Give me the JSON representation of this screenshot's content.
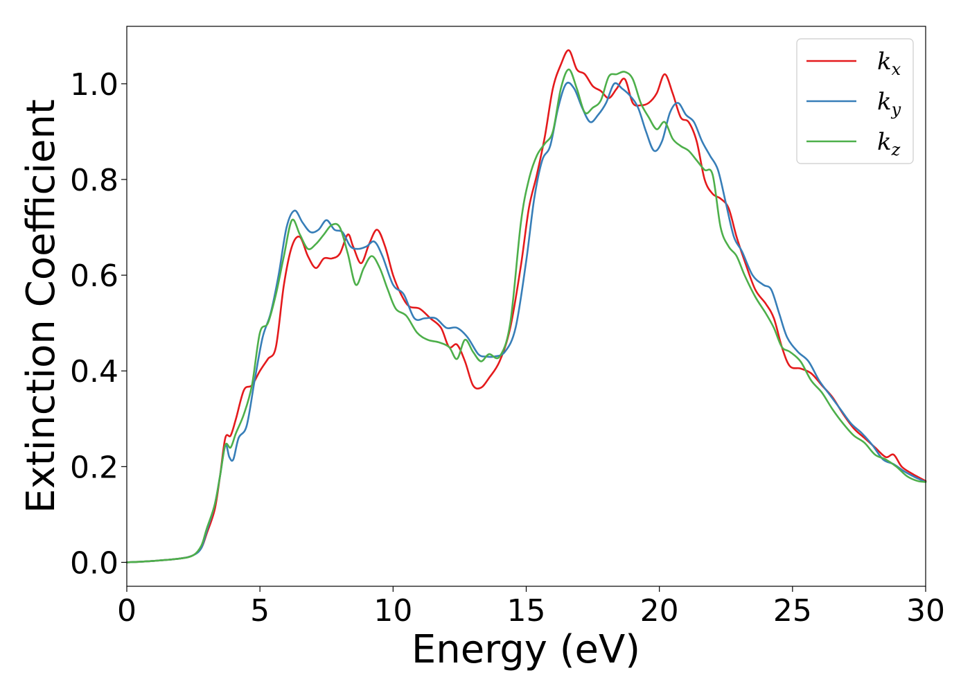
{
  "chart_data": {
    "type": "line",
    "xlabel": "Energy (eV)",
    "ylabel": "Extinction Coefficient",
    "xlim": [
      0,
      30
    ],
    "ylim": [
      -0.05,
      1.12
    ],
    "xticks": [
      0,
      5,
      10,
      15,
      20,
      25,
      30
    ],
    "xtick_labels": [
      "0",
      "5",
      "10",
      "15",
      "20",
      "25",
      "30"
    ],
    "yticks": [
      0.0,
      0.2,
      0.4,
      0.6,
      0.8,
      1.0
    ],
    "ytick_labels": [
      "0.0",
      "0.2",
      "0.4",
      "0.6",
      "0.8",
      "1.0"
    ],
    "grid": false,
    "legend_position": "top-right",
    "series": [
      {
        "name": "k",
        "subscript": "x",
        "color": "#e41a1c",
        "x": [
          0,
          1,
          2,
          2.5,
          2.8,
          3.0,
          3.3,
          3.5,
          3.7,
          3.9,
          4.1,
          4.4,
          4.7,
          5.0,
          5.3,
          5.6,
          5.9,
          6.2,
          6.5,
          6.8,
          7.1,
          7.4,
          7.7,
          8.0,
          8.3,
          8.5,
          8.8,
          9.1,
          9.4,
          9.7,
          10.0,
          10.3,
          10.6,
          11.0,
          11.4,
          11.8,
          12.1,
          12.4,
          12.7,
          13.0,
          13.3,
          13.6,
          14.0,
          14.4,
          14.8,
          15.1,
          15.4,
          15.7,
          16.0,
          16.3,
          16.6,
          16.9,
          17.2,
          17.5,
          17.8,
          18.1,
          18.4,
          18.7,
          19.0,
          19.3,
          19.6,
          19.9,
          20.2,
          20.5,
          20.8,
          21.1,
          21.4,
          21.7,
          22.0,
          22.3,
          22.6,
          22.9,
          23.2,
          23.6,
          24.0,
          24.3,
          24.6,
          24.9,
          25.3,
          25.7,
          26.1,
          26.5,
          26.9,
          27.3,
          27.7,
          28.1,
          28.5,
          28.8,
          29.1,
          29.5,
          30.0
        ],
        "y": [
          0.0,
          0.003,
          0.008,
          0.015,
          0.03,
          0.06,
          0.11,
          0.18,
          0.26,
          0.265,
          0.3,
          0.36,
          0.37,
          0.4,
          0.425,
          0.45,
          0.58,
          0.66,
          0.68,
          0.64,
          0.615,
          0.635,
          0.635,
          0.645,
          0.685,
          0.66,
          0.625,
          0.665,
          0.695,
          0.66,
          0.6,
          0.56,
          0.535,
          0.53,
          0.51,
          0.49,
          0.45,
          0.455,
          0.42,
          0.37,
          0.365,
          0.385,
          0.42,
          0.49,
          0.62,
          0.74,
          0.81,
          0.89,
          0.99,
          1.04,
          1.07,
          1.03,
          1.02,
          0.995,
          0.985,
          0.97,
          0.99,
          1.01,
          0.96,
          0.955,
          0.96,
          0.98,
          1.02,
          0.98,
          0.93,
          0.92,
          0.88,
          0.8,
          0.77,
          0.76,
          0.74,
          0.68,
          0.63,
          0.57,
          0.54,
          0.51,
          0.45,
          0.41,
          0.405,
          0.395,
          0.37,
          0.345,
          0.31,
          0.28,
          0.26,
          0.24,
          0.22,
          0.225,
          0.2,
          0.185,
          0.17
        ]
      },
      {
        "name": "k",
        "subscript": "y",
        "color": "#377eb8",
        "x": [
          0,
          1,
          2,
          2.5,
          2.8,
          3.0,
          3.3,
          3.5,
          3.7,
          3.85,
          4.0,
          4.2,
          4.5,
          4.8,
          5.1,
          5.4,
          5.7,
          6.0,
          6.3,
          6.6,
          6.9,
          7.2,
          7.5,
          7.8,
          8.1,
          8.4,
          8.7,
          9.0,
          9.3,
          9.6,
          10.0,
          10.4,
          10.8,
          11.2,
          11.6,
          12.0,
          12.4,
          12.8,
          13.2,
          13.5,
          13.8,
          14.2,
          14.6,
          15.0,
          15.3,
          15.6,
          15.9,
          16.2,
          16.5,
          16.8,
          17.1,
          17.4,
          17.7,
          18.0,
          18.3,
          18.6,
          18.9,
          19.2,
          19.5,
          19.8,
          20.1,
          20.4,
          20.7,
          21.0,
          21.3,
          21.6,
          21.9,
          22.2,
          22.5,
          22.8,
          23.1,
          23.5,
          23.9,
          24.2,
          24.5,
          24.8,
          25.2,
          25.6,
          26.0,
          26.4,
          26.8,
          27.2,
          27.6,
          28.0,
          28.4,
          28.8,
          29.2,
          29.6,
          30.0
        ],
        "y": [
          0.0,
          0.003,
          0.008,
          0.015,
          0.03,
          0.065,
          0.12,
          0.18,
          0.245,
          0.22,
          0.215,
          0.26,
          0.285,
          0.38,
          0.47,
          0.52,
          0.6,
          0.7,
          0.735,
          0.71,
          0.69,
          0.695,
          0.715,
          0.695,
          0.69,
          0.66,
          0.655,
          0.66,
          0.67,
          0.64,
          0.58,
          0.56,
          0.51,
          0.51,
          0.51,
          0.49,
          0.49,
          0.47,
          0.435,
          0.43,
          0.43,
          0.44,
          0.49,
          0.63,
          0.76,
          0.84,
          0.87,
          0.95,
          1.0,
          0.99,
          0.95,
          0.92,
          0.935,
          0.96,
          1.0,
          0.99,
          0.975,
          0.95,
          0.9,
          0.86,
          0.88,
          0.94,
          0.96,
          0.935,
          0.92,
          0.88,
          0.85,
          0.82,
          0.75,
          0.68,
          0.65,
          0.6,
          0.58,
          0.57,
          0.52,
          0.47,
          0.44,
          0.42,
          0.38,
          0.35,
          0.32,
          0.29,
          0.27,
          0.245,
          0.215,
          0.205,
          0.19,
          0.178,
          0.168
        ]
      },
      {
        "name": "k",
        "subscript": "z",
        "color": "#4daf4a",
        "x": [
          0,
          1,
          2,
          2.5,
          2.8,
          3.0,
          3.3,
          3.5,
          3.7,
          3.9,
          4.1,
          4.4,
          4.7,
          5.0,
          5.3,
          5.6,
          5.9,
          6.2,
          6.5,
          6.8,
          7.1,
          7.4,
          7.7,
          8.0,
          8.3,
          8.6,
          8.9,
          9.2,
          9.5,
          9.8,
          10.1,
          10.5,
          10.9,
          11.3,
          11.7,
          12.1,
          12.4,
          12.7,
          13.0,
          13.3,
          13.6,
          14.0,
          14.4,
          14.8,
          15.1,
          15.4,
          15.7,
          16.0,
          16.3,
          16.6,
          16.9,
          17.2,
          17.5,
          17.8,
          18.1,
          18.4,
          18.7,
          19.0,
          19.3,
          19.6,
          19.9,
          20.2,
          20.5,
          20.8,
          21.1,
          21.4,
          21.7,
          22.0,
          22.3,
          22.6,
          22.9,
          23.2,
          23.6,
          24.0,
          24.3,
          24.6,
          24.9,
          25.3,
          25.7,
          26.1,
          26.5,
          26.9,
          27.3,
          27.7,
          28.1,
          28.5,
          28.9,
          29.3,
          29.7,
          30.0
        ],
        "y": [
          0.0,
          0.003,
          0.008,
          0.015,
          0.035,
          0.07,
          0.12,
          0.18,
          0.245,
          0.24,
          0.27,
          0.31,
          0.37,
          0.48,
          0.5,
          0.56,
          0.64,
          0.715,
          0.685,
          0.655,
          0.665,
          0.685,
          0.705,
          0.7,
          0.645,
          0.58,
          0.615,
          0.64,
          0.615,
          0.57,
          0.53,
          0.515,
          0.48,
          0.465,
          0.46,
          0.45,
          0.425,
          0.465,
          0.44,
          0.42,
          0.435,
          0.43,
          0.5,
          0.71,
          0.8,
          0.85,
          0.875,
          0.9,
          0.99,
          1.03,
          0.99,
          0.94,
          0.95,
          0.965,
          1.015,
          1.02,
          1.025,
          1.01,
          0.96,
          0.93,
          0.905,
          0.92,
          0.885,
          0.87,
          0.86,
          0.84,
          0.82,
          0.81,
          0.7,
          0.66,
          0.64,
          0.6,
          0.555,
          0.52,
          0.49,
          0.45,
          0.44,
          0.42,
          0.38,
          0.355,
          0.32,
          0.29,
          0.265,
          0.25,
          0.225,
          0.215,
          0.2,
          0.18,
          0.17,
          0.168
        ]
      }
    ]
  }
}
